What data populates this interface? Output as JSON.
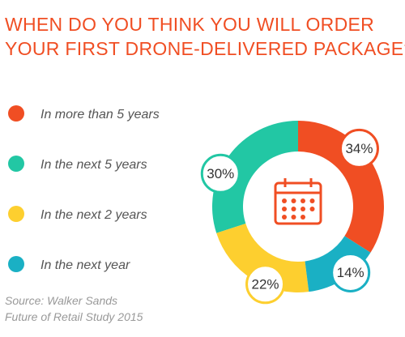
{
  "chart_data": {
    "type": "donut",
    "title": [
      "WHEN DO YOU THINK YOU WILL ORDER",
      "YOUR FIRST DRONE-DELIVERED PACKAGE?"
    ],
    "categories": [
      "In more than 5 years",
      "In the next 5 years",
      "In the next 2 years",
      "In the next year"
    ],
    "values": [
      34,
      30,
      22,
      14
    ],
    "value_labels": [
      "34%",
      "30%",
      "22%",
      "14%"
    ],
    "colors": [
      "#f04e23",
      "#22c7a4",
      "#fdcf2f",
      "#1ab0c4"
    ],
    "source": [
      "Source: Walker Sands",
      "Future of Retail Study 2015"
    ]
  }
}
